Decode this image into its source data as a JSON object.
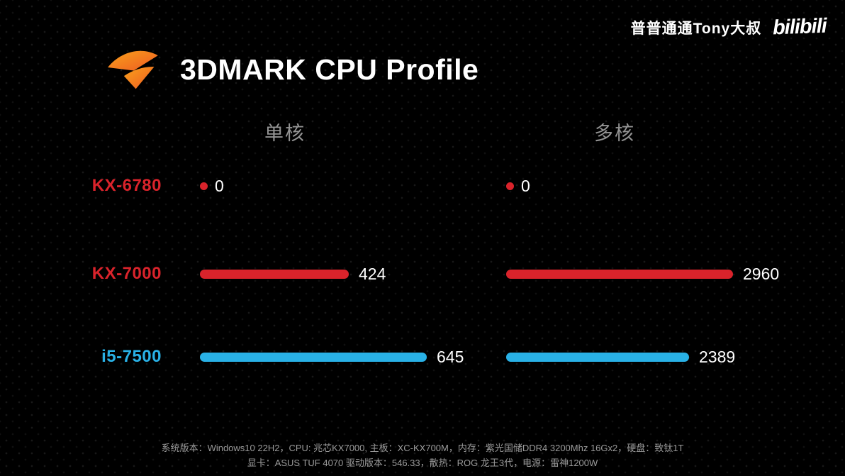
{
  "watermark": {
    "author": "普普通通Tony大叔",
    "platform": "bilibili"
  },
  "chart_data": {
    "type": "bar",
    "orientation": "horizontal",
    "title": "3DMARK CPU Profile",
    "categories": [
      "KX-6780",
      "KX-7000",
      "i5-7500"
    ],
    "category_colors": [
      "#d9232b",
      "#d9232b",
      "#29b1e6"
    ],
    "series": [
      {
        "name": "单核",
        "values": [
          0,
          424,
          645
        ]
      },
      {
        "name": "多核",
        "values": [
          0,
          2960,
          2389
        ]
      }
    ],
    "value_labels": true,
    "grid": false,
    "background": "#000000",
    "bar_color_red": "#d9232b",
    "bar_color_blue": "#29b1e6",
    "logo_color": "#f0731d"
  },
  "footer": {
    "line1": "系统版本：Windows10 22H2，CPU: 兆芯KX7000, 主板：XC-KX700M，内存：紫光国储DDR4 3200Mhz 16Gx2，硬盘：致钛1T",
    "line2": "显卡：ASUS TUF 4070 驱动版本：546.33，散热：ROG 龙王3代，电源：雷神1200W"
  }
}
